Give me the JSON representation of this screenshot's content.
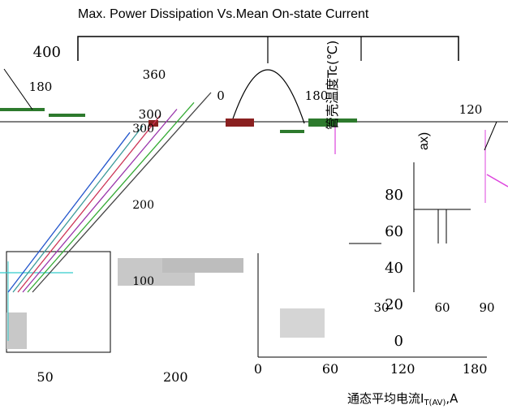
{
  "chart_data": {
    "type": "line",
    "title": "Max. Power Dissipation Vs.Mean On-state Current",
    "ylabel": "管壳温度Tc(℃)",
    "ylabel_fragment": "ax)",
    "xlabel_prefix": "通态平均电流",
    "xlabel_symbol": "I",
    "xlabel_sub": "T(AV)",
    "xlabel_unit": ",A",
    "left_panel": {
      "ytick_labels": [
        "400",
        "300",
        "200",
        "100"
      ],
      "ytick_values": [
        400,
        300,
        200,
        100
      ],
      "xtick_labels": [
        "50",
        "200"
      ],
      "xtick_values": [
        50,
        200
      ],
      "xlim": [
        0,
        280
      ],
      "ylim": [
        0,
        420
      ],
      "annotations": [
        "360",
        "180",
        "300",
        "0",
        "180",
        "120"
      ]
    },
    "right_panel": {
      "ytick_labels": [
        "80",
        "60",
        "40",
        "20",
        "0"
      ],
      "ytick_values": [
        80,
        60,
        40,
        20,
        0
      ],
      "xtick_labels": [
        "0",
        "60",
        "120",
        "180"
      ],
      "xtick_values": [
        0,
        60,
        120,
        180
      ],
      "inner_xtick_labels": [
        "30",
        "60",
        "90"
      ],
      "inner_xtick_values": [
        30,
        60,
        90
      ],
      "xlim": [
        0,
        190
      ],
      "ylim": [
        0,
        100
      ]
    },
    "series": [
      {
        "color": "#2255cc",
        "x": [
          0,
          150
        ],
        "y": [
          0,
          240
        ]
      },
      {
        "color": "#3b9a9a",
        "x": [
          0,
          160
        ],
        "y": [
          0,
          250
        ]
      },
      {
        "color": "#cc3355",
        "x": [
          0,
          175
        ],
        "y": [
          0,
          265
        ]
      },
      {
        "color": "#9933aa",
        "x": [
          0,
          190
        ],
        "y": [
          0,
          275
        ]
      },
      {
        "color": "#33aa33",
        "x": [
          0,
          205
        ],
        "y": [
          0,
          285
        ]
      },
      {
        "color": "#444444",
        "x": [
          0,
          220
        ],
        "y": [
          0,
          300
        ]
      }
    ]
  }
}
